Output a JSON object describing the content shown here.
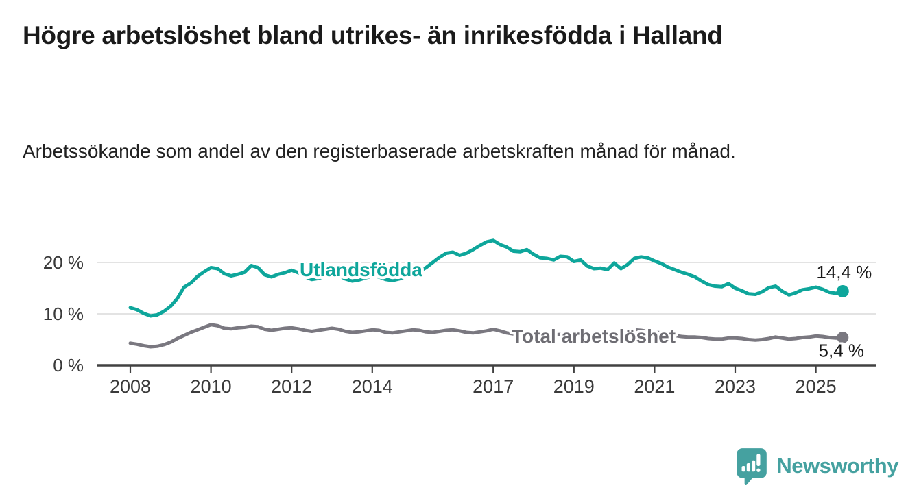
{
  "header": {
    "title": "Högre arbetslöshet bland utrikes- än inrikesfödda i Halland",
    "subtitle": "Arbetssökande som andel av den registerbaserade arbetskraften månad för månad."
  },
  "chart_data": {
    "type": "line",
    "title": "Högre arbetslöshet bland utrikes- än inrikesfödda i Halland",
    "subtitle": "Arbetssökande som andel av den registerbaserade arbetskraften månad för månad.",
    "unit": "%",
    "grid": true,
    "legend_position": "inline-labels-on-lines",
    "x_start_year": 2008,
    "x_points_per_year": 6,
    "xlim": [
      2007.2,
      2026.5
    ],
    "ylim": [
      0,
      26
    ],
    "x_ticks": [
      {
        "year": 2008,
        "label": "2008"
      },
      {
        "year": 2010,
        "label": "2010"
      },
      {
        "year": 2012,
        "label": "2012"
      },
      {
        "year": 2014,
        "label": "2014"
      },
      {
        "year": 2017,
        "label": "2017"
      },
      {
        "year": 2019,
        "label": "2019"
      },
      {
        "year": 2021,
        "label": "2021"
      },
      {
        "year": 2023,
        "label": "2023"
      },
      {
        "year": 2025,
        "label": "2025"
      }
    ],
    "y_ticks": [
      {
        "value": 0,
        "label": "0 %"
      },
      {
        "value": 10,
        "label": "10 %"
      },
      {
        "value": 20,
        "label": "20 %"
      }
    ],
    "series": [
      {
        "name": "Utlandsfödda",
        "color": "#0ea69b",
        "label_color": "#0ea69b",
        "end_label": "14,4 %",
        "end_value": 14.4,
        "values": [
          11.2,
          10.8,
          10.1,
          9.6,
          9.8,
          10.5,
          11.5,
          13.0,
          15.2,
          16.0,
          17.3,
          18.2,
          19.0,
          18.8,
          17.8,
          17.4,
          17.7,
          18.1,
          19.4,
          19.0,
          17.6,
          17.2,
          17.7,
          18.0,
          18.5,
          18.0,
          17.2,
          16.7,
          16.9,
          17.4,
          17.8,
          17.5,
          16.8,
          16.4,
          16.6,
          17.0,
          17.4,
          17.2,
          16.7,
          16.5,
          16.8,
          17.3,
          17.8,
          18.3,
          19.0,
          20.0,
          21.0,
          21.8,
          22.0,
          21.4,
          21.8,
          22.5,
          23.3,
          24.0,
          24.3,
          23.5,
          23.0,
          22.2,
          22.1,
          22.5,
          21.6,
          20.9,
          20.8,
          20.5,
          21.2,
          21.1,
          20.2,
          20.5,
          19.3,
          18.8,
          18.9,
          18.6,
          19.9,
          18.8,
          19.6,
          20.8,
          21.1,
          20.9,
          20.3,
          19.8,
          19.1,
          18.6,
          18.1,
          17.7,
          17.2,
          16.4,
          15.7,
          15.4,
          15.3,
          15.9,
          15.0,
          14.5,
          13.9,
          13.8,
          14.3,
          15.1,
          15.4,
          14.4,
          13.7,
          14.1,
          14.7,
          14.9,
          15.2,
          14.8,
          14.2,
          14.0,
          14.4
        ]
      },
      {
        "name": "Total arbetslöshet",
        "color": "#7a7880",
        "label_color": "#6e6d73",
        "end_label": "5,4 %",
        "end_value": 5.4,
        "values": [
          4.3,
          4.1,
          3.8,
          3.6,
          3.7,
          4.0,
          4.5,
          5.2,
          5.8,
          6.4,
          6.9,
          7.4,
          7.9,
          7.7,
          7.2,
          7.1,
          7.3,
          7.4,
          7.6,
          7.5,
          7.0,
          6.8,
          7.0,
          7.2,
          7.3,
          7.1,
          6.8,
          6.6,
          6.8,
          7.0,
          7.2,
          7.0,
          6.6,
          6.4,
          6.5,
          6.7,
          6.9,
          6.8,
          6.4,
          6.3,
          6.5,
          6.7,
          6.9,
          6.8,
          6.5,
          6.4,
          6.6,
          6.8,
          6.9,
          6.7,
          6.4,
          6.3,
          6.5,
          6.7,
          7.0,
          6.7,
          6.3,
          6.1,
          6.2,
          6.4,
          6.4,
          6.2,
          6.0,
          5.9,
          6.0,
          6.1,
          6.2,
          6.1,
          5.9,
          5.8,
          5.9,
          6.1,
          6.3,
          6.2,
          6.6,
          6.9,
          6.8,
          6.6,
          6.5,
          6.3,
          6.0,
          5.8,
          5.6,
          5.5,
          5.5,
          5.4,
          5.2,
          5.1,
          5.1,
          5.3,
          5.3,
          5.2,
          5.0,
          4.9,
          5.0,
          5.2,
          5.5,
          5.3,
          5.1,
          5.2,
          5.4,
          5.5,
          5.7,
          5.6,
          5.4,
          5.3,
          5.4
        ]
      }
    ],
    "colors": {
      "grid": "#dadada",
      "axis": "#414141",
      "tick_text": "#3a3a3a",
      "value_text": "#1a1a1a"
    }
  },
  "branding": {
    "name": "Newsworthy",
    "color": "#45a1a0",
    "icon": "newsworthy-speech-bubble-bar-chart-icon"
  }
}
